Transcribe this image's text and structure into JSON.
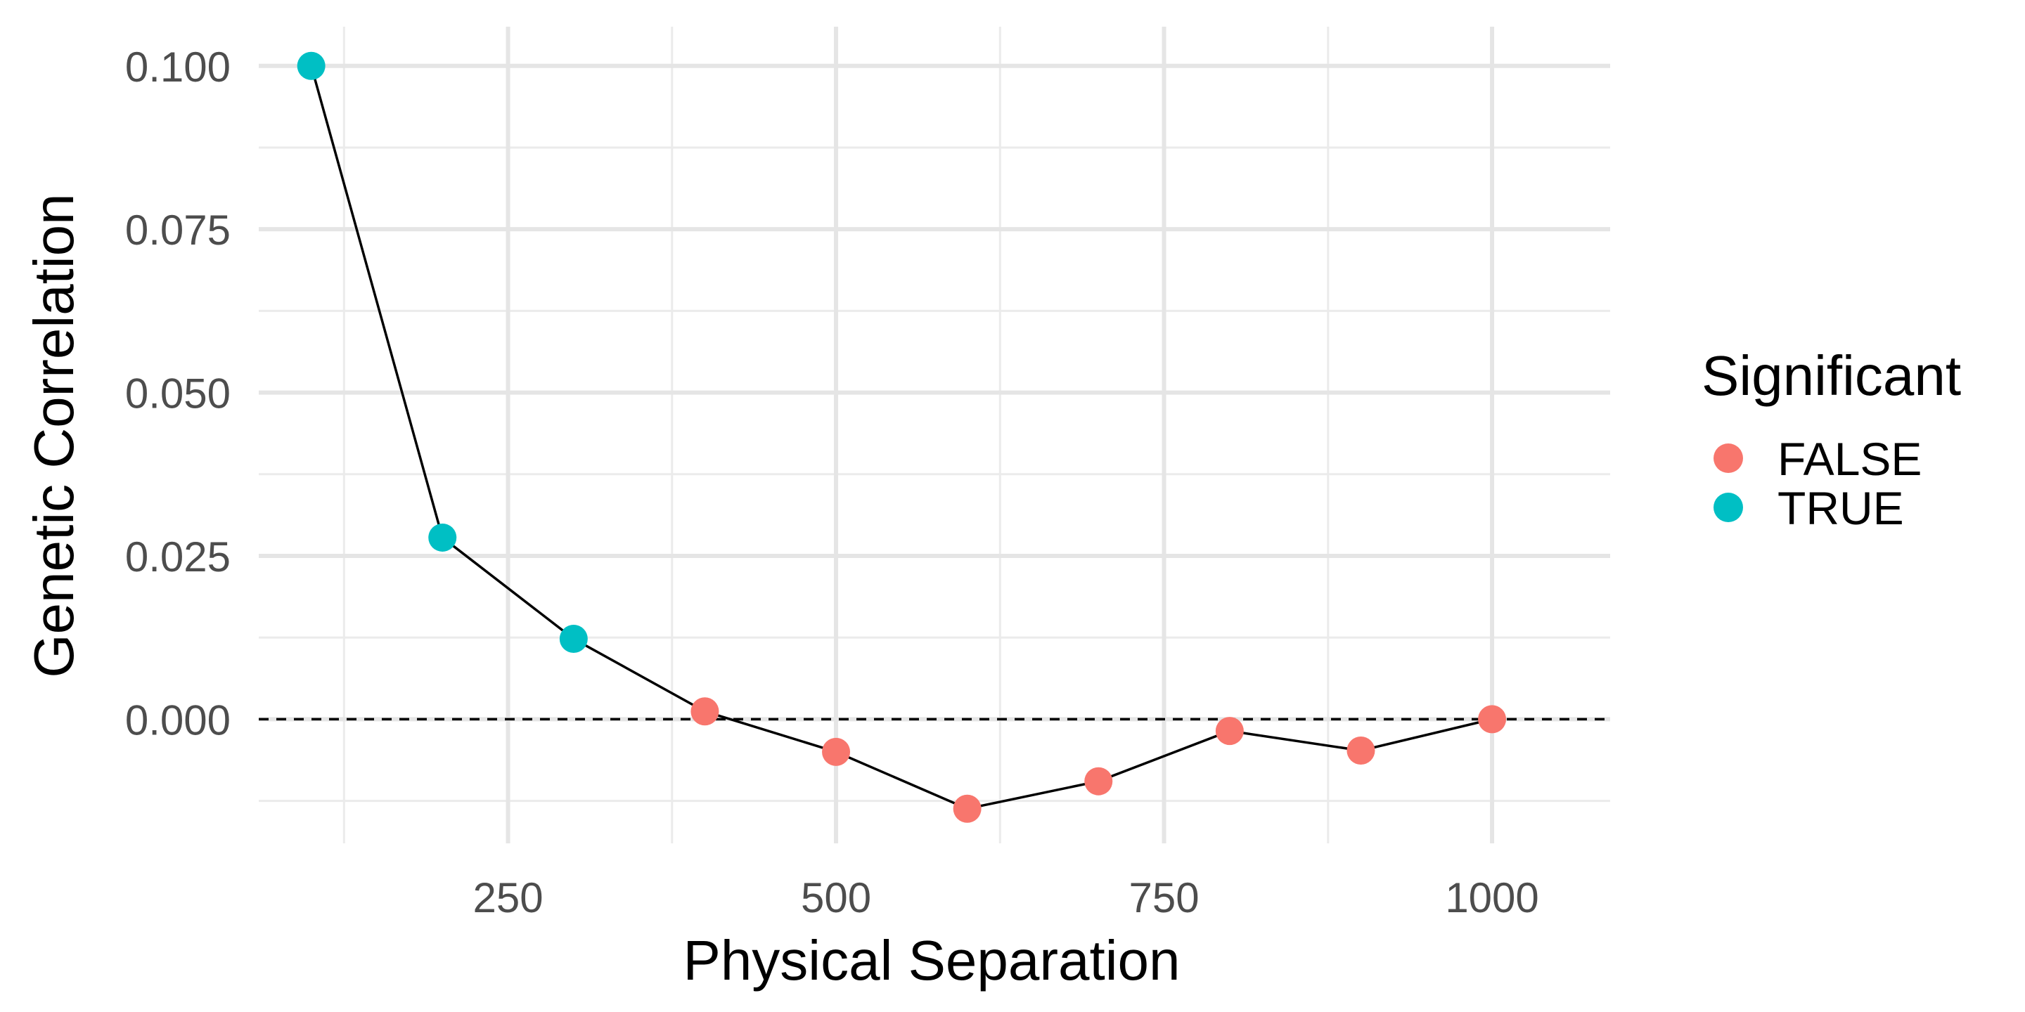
{
  "chart_data": {
    "type": "scatter",
    "xlabel": "Physical Separation",
    "ylabel": "Genetic Correlation",
    "xlim": [
      60,
      1090
    ],
    "ylim": [
      -0.019,
      0.106
    ],
    "x_ticks": [
      250,
      500,
      750,
      1000
    ],
    "x_tick_labels": [
      "250",
      "500",
      "750",
      "1000"
    ],
    "x_minor_ticks": [
      125,
      375,
      625,
      875
    ],
    "y_ticks": [
      0,
      0.025,
      0.05,
      0.075,
      0.1
    ],
    "y_tick_labels": [
      "0.000",
      "0.025",
      "0.050",
      "0.075",
      "0.100"
    ],
    "y_minor_ticks": [
      -0.0125,
      0.0125,
      0.0375,
      0.0625,
      0.0875
    ],
    "grid": true,
    "connecting_line": true,
    "reference_line": {
      "y": 0,
      "style": "dashed"
    },
    "legend": {
      "title": "Significant",
      "position": "right",
      "entries": [
        {
          "label": "FALSE",
          "color": "#F8766D"
        },
        {
          "label": "TRUE",
          "color": "#00BFC4"
        }
      ]
    },
    "points": [
      {
        "x": 100,
        "y": 0.1,
        "significant": "TRUE"
      },
      {
        "x": 200,
        "y": 0.0278,
        "significant": "TRUE"
      },
      {
        "x": 300,
        "y": 0.0123,
        "significant": "TRUE"
      },
      {
        "x": 400,
        "y": 0.0012,
        "significant": "FALSE"
      },
      {
        "x": 500,
        "y": -0.005,
        "significant": "FALSE"
      },
      {
        "x": 600,
        "y": -0.0137,
        "significant": "FALSE"
      },
      {
        "x": 700,
        "y": -0.0095,
        "significant": "FALSE"
      },
      {
        "x": 800,
        "y": -0.0018,
        "significant": "FALSE"
      },
      {
        "x": 900,
        "y": -0.0048,
        "significant": "FALSE"
      },
      {
        "x": 1000,
        "y": 0.0,
        "significant": "FALSE"
      }
    ]
  }
}
